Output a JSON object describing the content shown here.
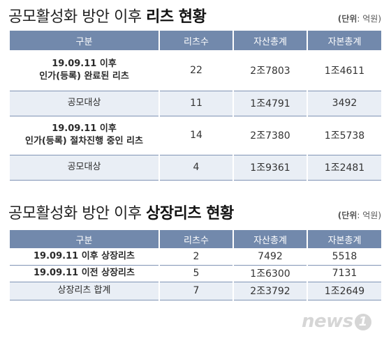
{
  "section1": {
    "title_normal": "공모활성화 방안 이후",
    "title_bold": "리츠 현황",
    "unit_bold": "(단위",
    "unit_rest": ": 억원)",
    "headers": [
      "구분",
      "리츠수",
      "자산총계",
      "자본총계"
    ],
    "rows": [
      {
        "cat1": "19.09.11 이후",
        "cat2": "인가(등록) 완료된 리츠",
        "count": "22",
        "assets": "2조7803",
        "equity": "1조4611"
      },
      {
        "cat1": "공모대상",
        "cat2": "",
        "count": "11",
        "assets": "1조4791",
        "equity": "3492"
      },
      {
        "cat1": "19.09.11 이후",
        "cat2": "인가(등록) 절차진행 중인 리츠",
        "count": "14",
        "assets": "2조7380",
        "equity": "1조5738"
      },
      {
        "cat1": "공모대상",
        "cat2": "",
        "count": "4",
        "assets": "1조9361",
        "equity": "1조2481"
      }
    ]
  },
  "section2": {
    "title_normal": "공모활성화 방안 이후",
    "title_bold": "상장리츠 현황",
    "unit_bold": "(단위",
    "unit_rest": ": 억원)",
    "headers": [
      "구분",
      "리츠수",
      "자산총계",
      "자본총계"
    ],
    "rows": [
      {
        "cat": "19.09.11 이후 상장리츠",
        "count": "2",
        "assets": "7492",
        "equity": "5518"
      },
      {
        "cat": "19.09.11 이전 상장리츠",
        "count": "5",
        "assets": "1조6300",
        "equity": "7131"
      },
      {
        "cat": "상장리츠 합계",
        "count": "7",
        "assets": "2조3792",
        "equity": "1조2649"
      }
    ]
  },
  "logo": {
    "text": "news",
    "mark": "1"
  }
}
